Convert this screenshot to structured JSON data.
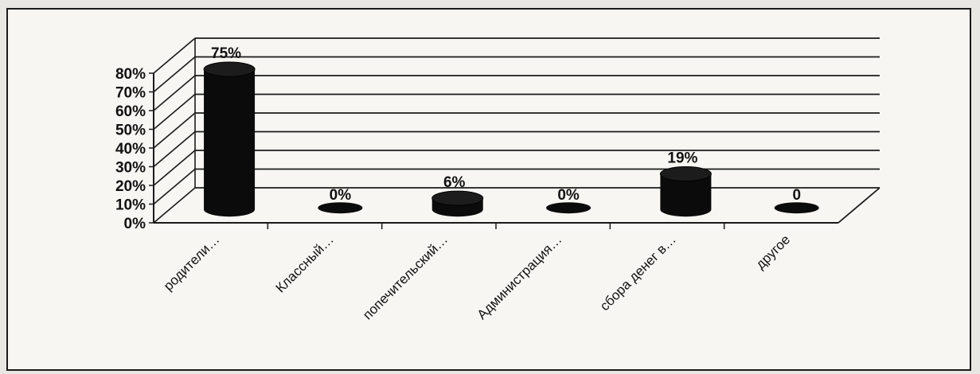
{
  "chart_data": {
    "type": "bar",
    "style": "3d-cylinder",
    "title": "",
    "xlabel": "",
    "ylabel": "",
    "ylim": [
      0,
      80
    ],
    "y_ticks": [
      "0%",
      "10%",
      "20%",
      "30%",
      "40%",
      "50%",
      "60%",
      "70%",
      "80%"
    ],
    "categories": [
      "родители…",
      "Классный…",
      "попечительский…",
      "Администрация…",
      "сбора денег в…",
      "другое"
    ],
    "values": [
      75,
      0,
      6,
      0,
      19,
      0
    ],
    "data_labels": [
      "75%",
      "0%",
      "6%",
      "0%",
      "19%",
      "0"
    ],
    "grid": true,
    "legend": "none",
    "colors": {
      "bar": "#0b0b0b",
      "grid": "#1a1a1a",
      "background": "#f7f6f3"
    }
  }
}
